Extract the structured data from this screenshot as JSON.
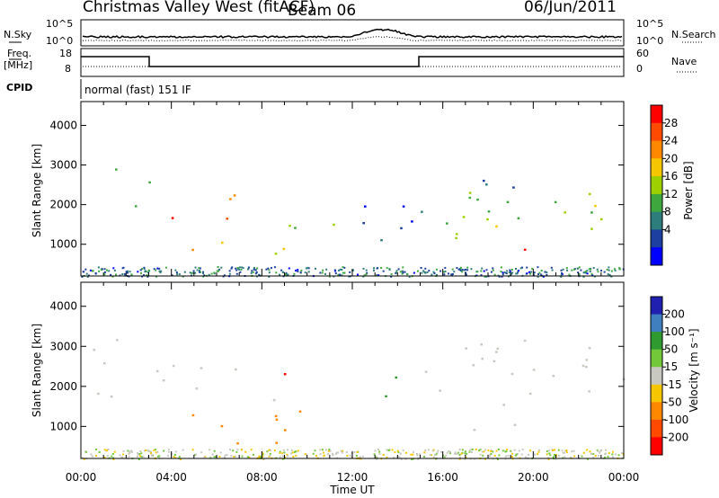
{
  "header": {
    "station": "Christmas Valley West (fitACF)",
    "beam": "Beam 06",
    "date": "06/Jun/2011"
  },
  "strips": {
    "nsky_label": "N.Sky",
    "nsky_ticks": [
      "10^5",
      "10^0"
    ],
    "nsearch_label": "N.Search",
    "nsearch_ticks": [
      "10^5",
      "10^0"
    ],
    "freq_label_1": "Freq.",
    "freq_label_2": "[MHz]",
    "freq_ticks": [
      "18",
      "8"
    ],
    "nave_label": "Nave",
    "nave_ticks": [
      "60",
      "0"
    ],
    "cpid_label": "CPID",
    "cpid_text": "normal (fast) 151 IF"
  },
  "chart_data": [
    {
      "type": "heatmap",
      "name": "power-panel",
      "ylabel": "Slant Range [km]",
      "yticks": [
        1000,
        2000,
        3000,
        4000
      ],
      "ylim": [
        200,
        4600
      ],
      "xlim": [
        0,
        24
      ],
      "xticks": [
        0,
        4,
        8,
        12,
        16,
        20,
        24
      ],
      "xtick_labels": [
        "00:00",
        "04:00",
        "08:00",
        "12:00",
        "16:00",
        "20:00",
        "00:00"
      ],
      "colorbar": {
        "label": "Power [dB]",
        "ticks": [
          "28",
          "24",
          "20",
          "16",
          "12",
          "8",
          "4"
        ],
        "colors": [
          "#ff0000",
          "#ff4a00",
          "#ff8800",
          "#f6c700",
          "#9ed000",
          "#3ea83e",
          "#2e7d7d",
          "#1c3fa0",
          "#0000ff"
        ]
      },
      "regions": [
        {
          "t0": 1.2,
          "t1": 3.0,
          "r0": 1500,
          "r1": 3100,
          "value": 10
        },
        {
          "t0": 3.0,
          "t1": 7.3,
          "r0": 1500,
          "r1": 2400,
          "value": 26
        },
        {
          "t0": 3.0,
          "t1": 9.8,
          "r0": 700,
          "r1": 1200,
          "value": 20
        },
        {
          "t0": 8.6,
          "t1": 11.2,
          "r0": 1100,
          "r1": 2000,
          "value": 14
        },
        {
          "t0": 11.0,
          "t1": 14.8,
          "r0": 1000,
          "r1": 2400,
          "value": 6
        },
        {
          "t0": 15.0,
          "t1": 19.5,
          "r0": 1300,
          "r1": 3200,
          "value": 12
        },
        {
          "t0": 16.5,
          "t1": 24.0,
          "r0": 800,
          "r1": 2300,
          "value": 16
        },
        {
          "t0": 19.0,
          "t1": 20.2,
          "r0": 300,
          "r1": 1200,
          "value": 26
        }
      ]
    },
    {
      "type": "heatmap",
      "name": "velocity-panel",
      "ylabel": "Slant Range [km]",
      "yticks": [
        1000,
        2000,
        3000,
        4000
      ],
      "ylim": [
        200,
        4600
      ],
      "xlim": [
        0,
        24
      ],
      "xticks": [
        0,
        4,
        8,
        12,
        16,
        20,
        24
      ],
      "xtick_labels": [
        "00:00",
        "04:00",
        "08:00",
        "12:00",
        "16:00",
        "20:00",
        "00:00"
      ],
      "xlabel": "Time UT",
      "colorbar": {
        "label": "Velocity [m s⁻¹]",
        "ticks": [
          "200",
          "100",
          "50",
          "15",
          "-15",
          "-50",
          "-100",
          "-200"
        ],
        "colors": [
          "#2020b0",
          "#3f7fc0",
          "#2f9a2f",
          "#73c83a",
          "#c8c8c0",
          "#f6c700",
          "#ff8800",
          "#ff4a00",
          "#ff0000"
        ]
      },
      "regions": [
        {
          "t0": 0.2,
          "t1": 3.0,
          "r0": 1600,
          "r1": 3200,
          "value": 0
        },
        {
          "t0": 3.0,
          "t1": 8.5,
          "r0": 1500,
          "r1": 2600,
          "value": 0
        },
        {
          "t0": 3.0,
          "t1": 11.0,
          "r0": 600,
          "r1": 1500,
          "value": -60
        },
        {
          "t0": 8.3,
          "t1": 9.3,
          "r0": 1600,
          "r1": 2700,
          "value": -200
        },
        {
          "t0": 12.8,
          "t1": 14.2,
          "r0": 1400,
          "r1": 2500,
          "value": 30
        },
        {
          "t0": 15.0,
          "t1": 24.0,
          "r0": 900,
          "r1": 3200,
          "value": 0
        }
      ]
    }
  ]
}
